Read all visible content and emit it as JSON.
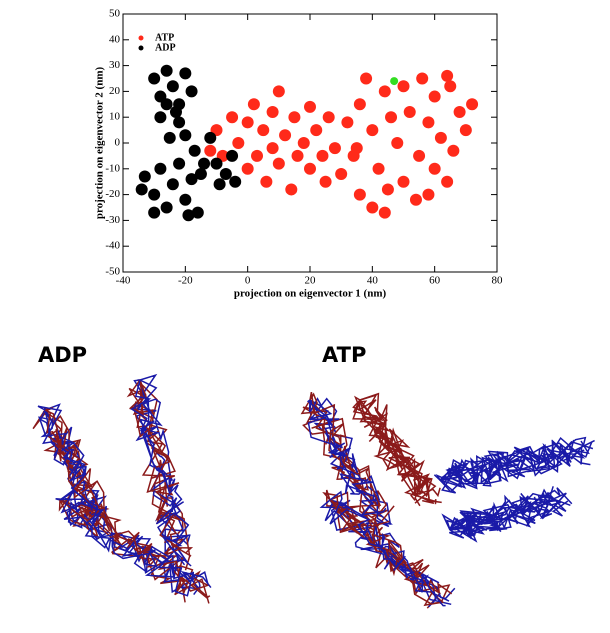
{
  "chart_data": {
    "type": "scatter",
    "x_label": "projection on eigenvector 1 (nm)",
    "y_label": "projection on eigenvector 2 (nm)",
    "xlim": [
      -40,
      80
    ],
    "ylim": [
      -50,
      50
    ],
    "xticks": [
      -40,
      -20,
      0,
      20,
      40,
      60,
      80
    ],
    "yticks": [
      -50,
      -40,
      -30,
      -20,
      -10,
      0,
      10,
      20,
      30,
      40,
      50
    ],
    "series": [
      {
        "name": "ATP",
        "color": "#ff2a1a",
        "x": [
          -10,
          -8,
          -5,
          -3,
          0,
          0,
          2,
          3,
          5,
          6,
          8,
          8,
          10,
          10,
          12,
          14,
          15,
          16,
          18,
          20,
          20,
          22,
          24,
          26,
          28,
          30,
          32,
          34,
          36,
          36,
          38,
          40,
          40,
          42,
          44,
          45,
          46,
          48,
          50,
          50,
          52,
          54,
          55,
          56,
          58,
          60,
          60,
          62,
          64,
          65,
          66,
          68,
          70,
          72,
          44,
          35,
          25,
          -12,
          58,
          64
        ],
        "y": [
          5,
          -5,
          10,
          0,
          8,
          -10,
          15,
          -5,
          5,
          -15,
          12,
          -2,
          20,
          -8,
          3,
          -18,
          10,
          -5,
          0,
          14,
          -10,
          5,
          -5,
          10,
          -2,
          -12,
          8,
          -5,
          15,
          -20,
          25,
          5,
          -25,
          -10,
          20,
          -18,
          10,
          0,
          22,
          -15,
          12,
          -22,
          -5,
          25,
          8,
          -10,
          18,
          2,
          -15,
          22,
          -3,
          12,
          5,
          15,
          -27,
          -2,
          -15,
          -3,
          -20,
          26
        ]
      },
      {
        "name": "ADP",
        "color": "#000000",
        "x": [
          -30,
          -28,
          -26,
          -24,
          -22,
          -20,
          -18,
          -22,
          -28,
          -25,
          -20,
          -17,
          -14,
          -12,
          -10,
          -7,
          -5,
          -4,
          -9,
          -15,
          -33,
          -30,
          -28,
          -26,
          -24,
          -22,
          -20,
          -18,
          -16,
          -30,
          -34,
          -19,
          -23,
          -26
        ],
        "y": [
          25,
          18,
          28,
          22,
          15,
          27,
          20,
          8,
          10,
          2,
          3,
          -3,
          -8,
          2,
          -8,
          -12,
          -5,
          -15,
          -16,
          -12,
          -13,
          -20,
          -10,
          -25,
          -16,
          -8,
          -22,
          -14,
          -27,
          -27,
          -18,
          -28,
          12,
          15
        ]
      }
    ],
    "highlight": {
      "x": [
        47
      ],
      "y": [
        24
      ],
      "color": "#33dd22"
    }
  },
  "panels": [
    {
      "label": "ADP"
    },
    {
      "label": "ATP"
    }
  ]
}
